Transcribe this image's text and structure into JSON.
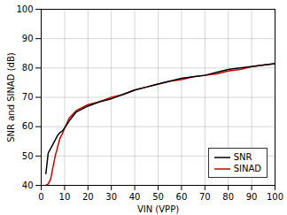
{
  "chart_data": {
    "type": "line",
    "title": "",
    "xlabel": "VIN (VPP)",
    "ylabel": "SNR and SINAD (dB)",
    "x": [
      2,
      3,
      4,
      5,
      6,
      7,
      8,
      9,
      10,
      12,
      15,
      20,
      25,
      30,
      35,
      40,
      45,
      50,
      55,
      60,
      65,
      70,
      75,
      80,
      85,
      90,
      95,
      100
    ],
    "series": [
      {
        "name": "SNR",
        "color": "#000000",
        "values": [
          44,
          51,
          52.5,
          54,
          55.5,
          57,
          58,
          58.5,
          59.5,
          62,
          65,
          67,
          68.5,
          69.5,
          71,
          72.5,
          73.5,
          74.5,
          75.5,
          76.5,
          77,
          77.5,
          78.5,
          79.5,
          80,
          80.5,
          81,
          81.5
        ]
      },
      {
        "name": "SINAD",
        "color": "#cc0000",
        "values": [
          40,
          40.5,
          42,
          46,
          50,
          53,
          56,
          57.5,
          59.5,
          63,
          65.5,
          67.5,
          68.5,
          70,
          71,
          72.5,
          73.5,
          74.5,
          75.5,
          76,
          77,
          77.5,
          78,
          79,
          79.5,
          80.5,
          81,
          81.5
        ]
      }
    ],
    "xlim": [
      0,
      100
    ],
    "ylim": [
      40,
      100
    ],
    "xticks": [
      0,
      10,
      20,
      30,
      40,
      50,
      60,
      70,
      80,
      90,
      100
    ],
    "yticks": [
      40,
      50,
      60,
      70,
      80,
      90,
      100
    ],
    "grid": true,
    "legend": "lower right"
  }
}
